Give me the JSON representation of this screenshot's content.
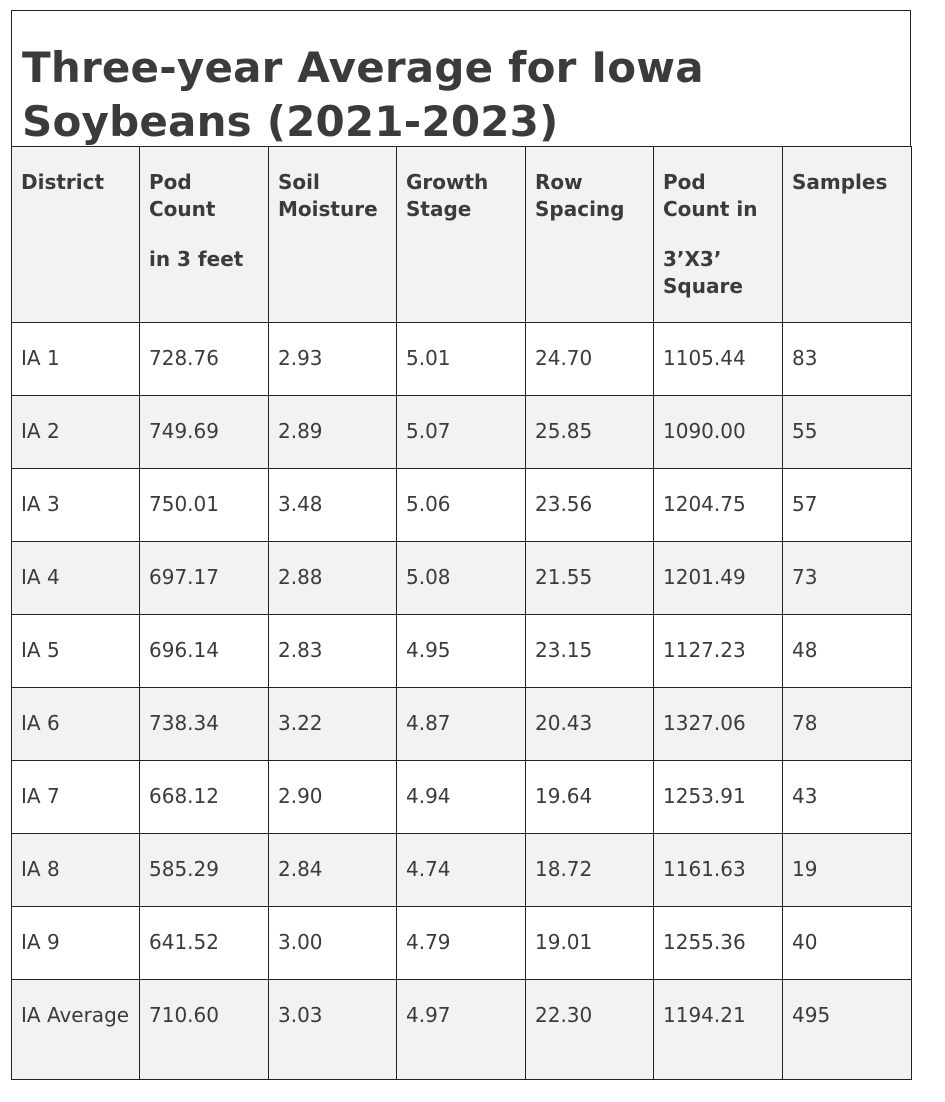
{
  "title": {
    "line1": "Three-year Average for Iowa",
    "line2": "Soybeans (2021-2023)"
  },
  "table": {
    "headers": [
      {
        "line1": "District",
        "line2": ""
      },
      {
        "line1": "Pod Count",
        "line2": "in 3 feet"
      },
      {
        "line1": "Soil Moisture",
        "line2": ""
      },
      {
        "line1": "Growth Stage",
        "line2": ""
      },
      {
        "line1": "Row Spacing",
        "line2": ""
      },
      {
        "line1": "Pod Count in",
        "line2": "3’X3’ Square"
      },
      {
        "line1": "Samples",
        "line2": ""
      }
    ],
    "rows": [
      [
        "IA 1",
        "728.76",
        "2.93",
        "5.01",
        "24.70",
        "1105.44",
        "83"
      ],
      [
        "IA 2",
        "749.69",
        "2.89",
        "5.07",
        "25.85",
        "1090.00",
        "55"
      ],
      [
        "IA 3",
        "750.01",
        "3.48",
        "5.06",
        "23.56",
        "1204.75",
        "57"
      ],
      [
        "IA 4",
        "697.17",
        "2.88",
        "5.08",
        "21.55",
        "1201.49",
        "73"
      ],
      [
        "IA 5",
        "696.14",
        "2.83",
        "4.95",
        "23.15",
        "1127.23",
        "48"
      ],
      [
        "IA 6",
        "738.34",
        "3.22",
        "4.87",
        "20.43",
        "1327.06",
        "78"
      ],
      [
        "IA 7",
        "668.12",
        "2.90",
        "4.94",
        "19.64",
        "1253.91",
        "43"
      ],
      [
        "IA 8",
        "585.29",
        "2.84",
        "4.74",
        "18.72",
        "1161.63",
        "19"
      ],
      [
        "IA 9",
        "641.52",
        "3.00",
        "4.79",
        "19.01",
        "1255.36",
        "40"
      ],
      [
        "IA Average",
        "710.60",
        "3.03",
        "4.97",
        "22.30",
        "1194.21",
        "495"
      ]
    ]
  }
}
